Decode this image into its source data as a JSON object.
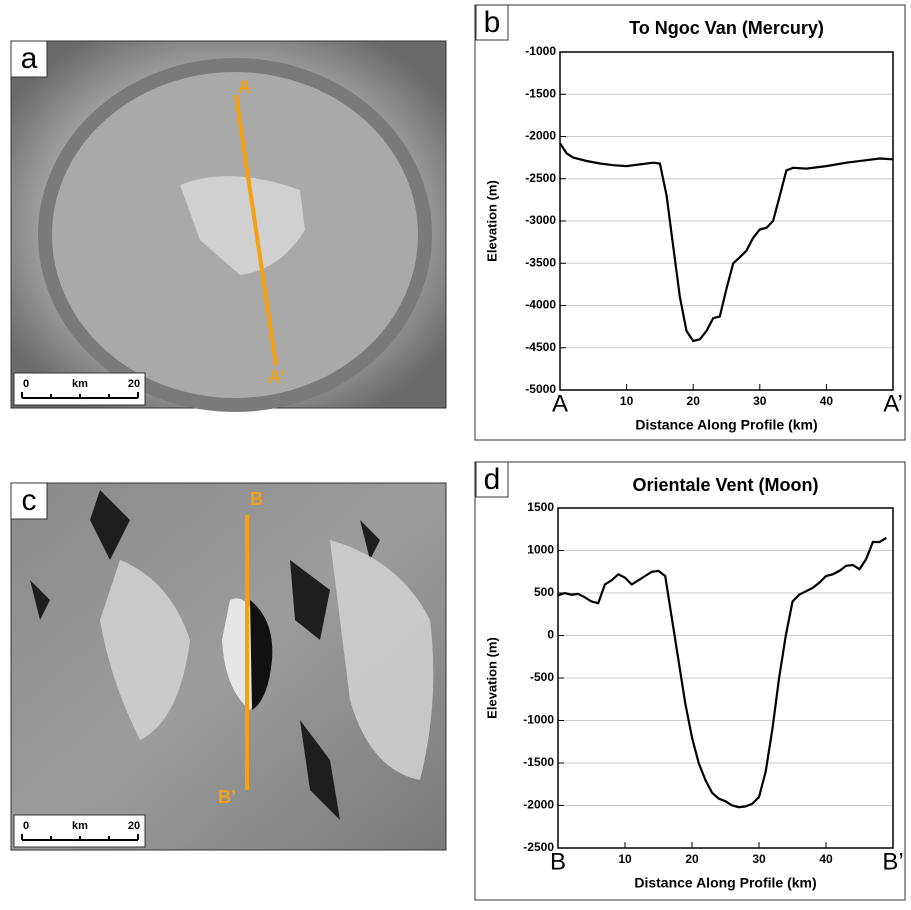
{
  "images": [
    {
      "letter": "a",
      "profile_start": "A",
      "profile_end": "A’",
      "scale_labels": [
        "0",
        "km",
        "20"
      ]
    },
    {
      "letter": "c",
      "profile_start": "B",
      "profile_end": "B’",
      "scale_labels": [
        "0",
        "km",
        "20"
      ]
    }
  ],
  "chart_data": [
    {
      "type": "line",
      "panel_label": "b",
      "title": "To Ngoc Van (Mercury)",
      "x_label": "Distance Along Profile (km)",
      "y_label": "Elevation (m)",
      "x": [
        0,
        1,
        2,
        4,
        6,
        8,
        10,
        12,
        14,
        15,
        16,
        17,
        18,
        19,
        20,
        21,
        22,
        23,
        24,
        25,
        26,
        27,
        28,
        29,
        30,
        31,
        32,
        33,
        34,
        35,
        37,
        40,
        43,
        46,
        48,
        50
      ],
      "values": [
        -2080,
        -2200,
        -2250,
        -2290,
        -2320,
        -2340,
        -2350,
        -2330,
        -2310,
        -2320,
        -2700,
        -3300,
        -3900,
        -4300,
        -4420,
        -4400,
        -4300,
        -4150,
        -4130,
        -3800,
        -3500,
        -3430,
        -3350,
        -3200,
        -3100,
        -3080,
        -3000,
        -2700,
        -2400,
        -2370,
        -2380,
        -2350,
        -2310,
        -2280,
        -2260,
        -2270
      ],
      "color": "#000000",
      "xlim": [
        0,
        50
      ],
      "xticks": [
        {
          "value": 0,
          "label": "A"
        },
        10,
        20,
        30,
        40,
        {
          "value": 50,
          "label": "A’"
        }
      ],
      "ylim": [
        -5000,
        -1000
      ],
      "yticks": [
        -5000,
        -4500,
        -4000,
        -3500,
        -3000,
        -2500,
        -2000,
        -1500,
        -1000
      ],
      "grid": true
    },
    {
      "type": "line",
      "panel_label": "d",
      "title": "Orientale Vent (Moon)",
      "x_label": "Distance Along Profile (km)",
      "y_label": "Elevation (m)",
      "x": [
        0,
        1,
        2,
        3,
        4,
        5,
        6,
        7,
        8,
        9,
        10,
        11,
        12,
        13,
        14,
        15,
        16,
        17,
        18,
        19,
        20,
        21,
        22,
        23,
        24,
        25,
        26,
        27,
        28,
        29,
        30,
        31,
        32,
        33,
        34,
        35,
        36,
        37,
        38,
        39,
        40,
        41,
        42,
        43,
        44,
        45,
        46,
        47,
        48,
        49
      ],
      "values": [
        470,
        500,
        480,
        490,
        450,
        400,
        380,
        600,
        650,
        720,
        680,
        600,
        650,
        700,
        750,
        760,
        700,
        200,
        -300,
        -800,
        -1200,
        -1500,
        -1700,
        -1850,
        -1920,
        -1950,
        -2000,
        -2020,
        -2010,
        -1980,
        -1900,
        -1600,
        -1100,
        -500,
        0,
        400,
        480,
        520,
        560,
        620,
        700,
        720,
        760,
        820,
        830,
        780,
        900,
        1100,
        1100,
        1150
      ],
      "color": "#000000",
      "xlim": [
        0,
        50
      ],
      "xticks": [
        {
          "value": 0,
          "label": "B"
        },
        10,
        20,
        30,
        40,
        {
          "value": 50,
          "label": "B’"
        }
      ],
      "ylim": [
        -2500,
        1500
      ],
      "yticks": [
        -2500,
        -2000,
        -1500,
        -1000,
        -500,
        0,
        500,
        1000,
        1500
      ],
      "grid": true
    }
  ]
}
